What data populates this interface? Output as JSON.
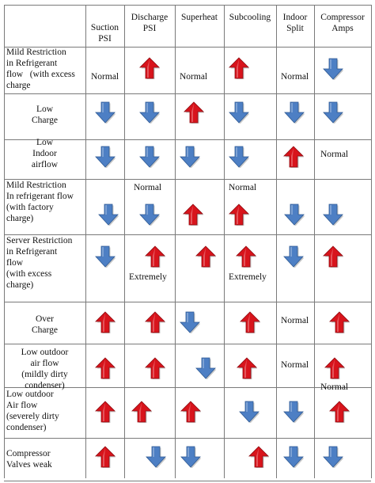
{
  "table": {
    "headers": [
      "",
      "Suction PSI",
      "Discharge PSI",
      "Superheat",
      "Subcooling",
      "Indoor Split",
      "Compressor Amps"
    ],
    "rows": [
      {
        "label": "Mild Restriction in Refrigerant flow   (with excess charge",
        "cells": [
          {
            "text": "Normal",
            "arrow": null
          },
          {
            "text": "",
            "arrow": "up"
          },
          {
            "text": "Normal",
            "arrow": null
          },
          {
            "text": "",
            "arrow": "up"
          },
          {
            "text": "Normal",
            "arrow": null
          },
          {
            "text": "",
            "arrow": "down"
          }
        ]
      },
      {
        "label": "Low Charge",
        "cells": [
          {
            "text": "",
            "arrow": "down"
          },
          {
            "text": "",
            "arrow": "down"
          },
          {
            "text": "",
            "arrow": "up"
          },
          {
            "text": "",
            "arrow": "down"
          },
          {
            "text": "",
            "arrow": "down"
          },
          {
            "text": "",
            "arrow": "down"
          }
        ]
      },
      {
        "label": "Low Indoor airflow",
        "cells": [
          {
            "text": "",
            "arrow": "down"
          },
          {
            "text": "",
            "arrow": "down"
          },
          {
            "text": "",
            "arrow": "down"
          },
          {
            "text": "",
            "arrow": "down"
          },
          {
            "text": "",
            "arrow": "up"
          },
          {
            "text": "Normal",
            "arrow": null
          }
        ]
      },
      {
        "label": "Mild Restriction In refrigerant flow (with factory charge)",
        "cells": [
          {
            "text": "",
            "arrow": "down"
          },
          {
            "text": "Normal",
            "arrow": "down"
          },
          {
            "text": "",
            "arrow": "up"
          },
          {
            "text": "Normal",
            "arrow": "up"
          },
          {
            "text": "",
            "arrow": "down"
          },
          {
            "text": "",
            "arrow": "down"
          }
        ]
      },
      {
        "label": "Server Restriction in Refrigerant flow (with excess charge)",
        "cells": [
          {
            "text": "",
            "arrow": "down"
          },
          {
            "text": "Extremely",
            "arrow": "up"
          },
          {
            "text": "",
            "arrow": "up"
          },
          {
            "text": "Extremely",
            "arrow": "up"
          },
          {
            "text": "",
            "arrow": "down"
          },
          {
            "text": "",
            "arrow": "up"
          }
        ]
      },
      {
        "label": "Over Charge",
        "cells": [
          {
            "text": "",
            "arrow": "up"
          },
          {
            "text": "",
            "arrow": "up"
          },
          {
            "text": "",
            "arrow": "down"
          },
          {
            "text": "",
            "arrow": "up"
          },
          {
            "text": "Normal",
            "arrow": null
          },
          {
            "text": "",
            "arrow": "up"
          }
        ]
      },
      {
        "label": "Low outdoor air flow (mildly dirty condenser)",
        "cells": [
          {
            "text": "",
            "arrow": "up"
          },
          {
            "text": "",
            "arrow": "up"
          },
          {
            "text": "",
            "arrow": "down"
          },
          {
            "text": "",
            "arrow": "up"
          },
          {
            "text": "Normal",
            "arrow": null
          },
          {
            "text": "Normal",
            "arrow": "up"
          }
        ]
      },
      {
        "label": "Low outdoor Air flow (severely dirty condenser)",
        "cells": [
          {
            "text": "",
            "arrow": "up"
          },
          {
            "text": "",
            "arrow": "up"
          },
          {
            "text": "",
            "arrow": "up"
          },
          {
            "text": "",
            "arrow": "down"
          },
          {
            "text": "",
            "arrow": "down"
          },
          {
            "text": "",
            "arrow": "up"
          }
        ]
      },
      {
        "label": "Compressor Valves weak",
        "cells": [
          {
            "text": "",
            "arrow": "up"
          },
          {
            "text": "",
            "arrow": "down"
          },
          {
            "text": "",
            "arrow": "down"
          },
          {
            "text": "",
            "arrow": "up"
          },
          {
            "text": "",
            "arrow": "down"
          },
          {
            "text": "",
            "arrow": "down"
          }
        ]
      }
    ]
  },
  "colors": {
    "up_arrow": "#d8141c",
    "down_arrow": "#4d7fc4",
    "grid": "#7a7a7a"
  },
  "icons": {
    "up": "red-up-arrow-icon",
    "down": "blue-down-arrow-icon"
  }
}
